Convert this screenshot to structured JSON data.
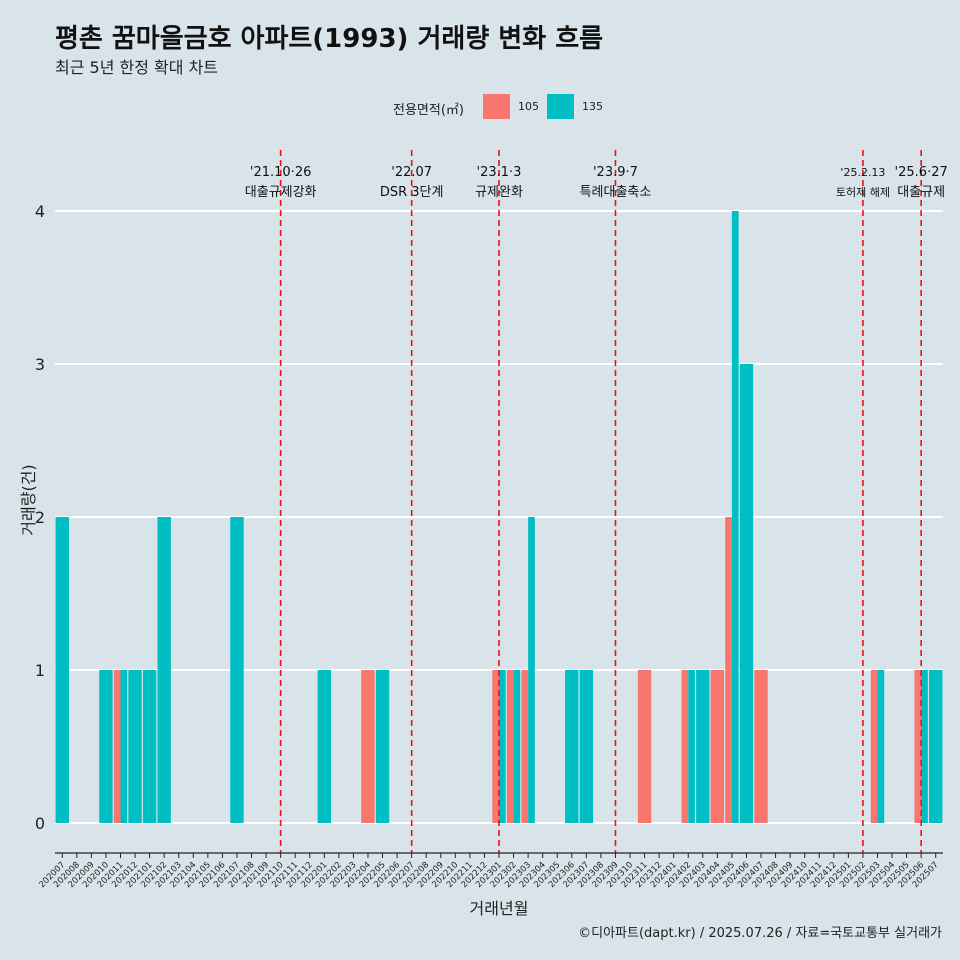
{
  "title": "평촌 꿈마을금호 아파트(1993) 거래량 변화 흐름",
  "subtitle": "최근 5년 한정 확대 차트",
  "caption": "©디아파트(dapt.kr) / 2025.07.26 / 자료=국토교통부 실거래가",
  "legend": {
    "title": "전용면적(㎡)",
    "items": [
      {
        "label": "105",
        "color": "#f8766d"
      },
      {
        "label": "135",
        "color": "#00bfc4"
      }
    ]
  },
  "chart_data": {
    "type": "bar",
    "xlabel": "거래년월",
    "ylabel": "거래량(건)",
    "ylim": [
      0,
      4
    ],
    "yticks": [
      0,
      1,
      2,
      3,
      4
    ],
    "grid": "horizontal major lines",
    "legend_position": "top",
    "categories": [
      "202007",
      "202008",
      "202009",
      "202010",
      "202011",
      "202012",
      "202101",
      "202102",
      "202103",
      "202104",
      "202105",
      "202106",
      "202107",
      "202108",
      "202109",
      "202110",
      "202111",
      "202112",
      "202201",
      "202202",
      "202203",
      "202204",
      "202205",
      "202206",
      "202207",
      "202208",
      "202209",
      "202210",
      "202211",
      "202212",
      "202301",
      "202302",
      "202303",
      "202304",
      "202305",
      "202306",
      "202307",
      "202308",
      "202309",
      "202310",
      "202311",
      "202312",
      "202401",
      "202402",
      "202403",
      "202404",
      "202405",
      "202406",
      "202407",
      "202408",
      "202409",
      "202410",
      "202411",
      "202412",
      "202501",
      "202502",
      "202503",
      "202504",
      "202505",
      "202506",
      "202507"
    ],
    "series": [
      {
        "name": "105",
        "color": "#f8766d",
        "values": [
          0,
          0,
          0,
          0,
          1,
          0,
          0,
          0,
          0,
          0,
          0,
          0,
          0,
          0,
          0,
          0,
          0,
          0,
          0,
          0,
          0,
          1,
          0,
          0,
          0,
          0,
          0,
          0,
          0,
          0,
          1,
          1,
          1,
          0,
          0,
          0,
          0,
          0,
          0,
          0,
          1,
          0,
          0,
          1,
          0,
          1,
          2,
          0,
          1,
          0,
          0,
          0,
          0,
          0,
          0,
          0,
          1,
          0,
          0,
          1,
          0
        ]
      },
      {
        "name": "135",
        "color": "#00bfc4",
        "values": [
          2,
          0,
          0,
          1,
          1,
          1,
          1,
          2,
          0,
          0,
          0,
          0,
          2,
          0,
          0,
          0,
          0,
          0,
          1,
          0,
          0,
          0,
          1,
          0,
          0,
          0,
          0,
          0,
          0,
          0,
          1,
          1,
          2,
          0,
          0,
          1,
          1,
          0,
          0,
          0,
          0,
          0,
          0,
          1,
          1,
          0,
          4,
          3,
          0,
          0,
          0,
          0,
          0,
          0,
          0,
          0,
          1,
          0,
          0,
          1,
          1
        ]
      }
    ],
    "annotations": [
      {
        "date_label": "'21.10·26",
        "text": "대출규제강화",
        "x": "202110"
      },
      {
        "date_label": "'22.07",
        "text": "DSR 3단계",
        "x": "202207"
      },
      {
        "date_label": "'23.1·3",
        "text": "규제완화",
        "x": "202301"
      },
      {
        "date_label": "'23.9·7",
        "text": "특례대출축소",
        "x": "202309"
      },
      {
        "date_label": "'25.2.13",
        "text": "토허제 해제",
        "x": "202502"
      },
      {
        "date_label": "'25.6·27",
        "text": "대출규제",
        "x": "202506"
      }
    ]
  }
}
